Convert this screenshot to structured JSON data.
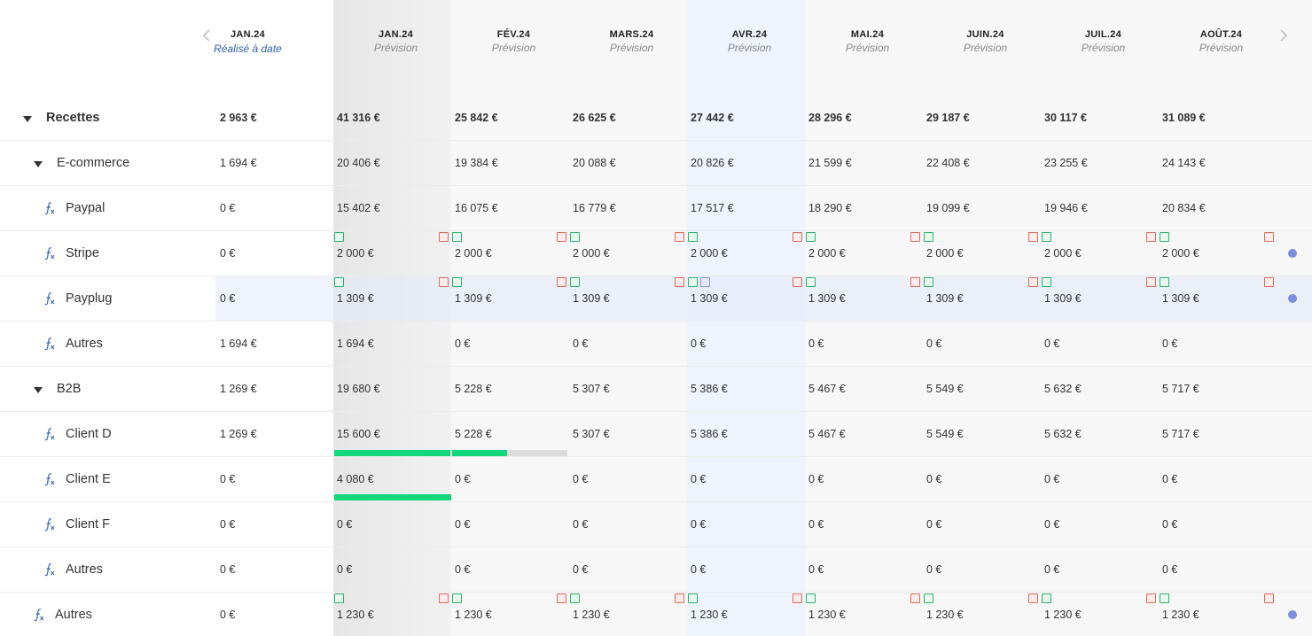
{
  "header": {
    "realized": {
      "month": "JAN.24",
      "subtitle": "Réalisé à date"
    },
    "forecast_columns": [
      {
        "month": "JAN.24",
        "subtitle": "Prévision"
      },
      {
        "month": "FÉV.24",
        "subtitle": "Prévision"
      },
      {
        "month": "MARS.24",
        "subtitle": "Prévision"
      },
      {
        "month": "AVR.24",
        "subtitle": "Prévision"
      },
      {
        "month": "MAI.24",
        "subtitle": "Prévision"
      },
      {
        "month": "JUIN.24",
        "subtitle": "Prévision"
      },
      {
        "month": "JUIL.24",
        "subtitle": "Prévision"
      },
      {
        "month": "AOÛT.24",
        "subtitle": "Prévision"
      }
    ]
  },
  "rows": [
    {
      "label": "Recettes",
      "realized": "2 963 €",
      "values": [
        "41 316 €",
        "25 842 €",
        "26 625 €",
        "27 442 €",
        "28 296 €",
        "29 187 €",
        "30 117 €",
        "31 089 €"
      ]
    },
    {
      "label": "E-commerce",
      "realized": "1 694 €",
      "values": [
        "20 406 €",
        "19 384 €",
        "20 088 €",
        "20 826 €",
        "21 599 €",
        "22 408 €",
        "23 255 €",
        "24 143 €"
      ]
    },
    {
      "label": "Paypal",
      "realized": "0 €",
      "values": [
        "15 402 €",
        "16 075 €",
        "16 779 €",
        "17 517 €",
        "18 290 €",
        "19 099 €",
        "19 946 €",
        "20 834 €"
      ]
    },
    {
      "label": "Stripe",
      "realized": "0 €",
      "values": [
        "2 000 €",
        "2 000 €",
        "2 000 €",
        "2 000 €",
        "2 000 €",
        "2 000 €",
        "2 000 €",
        "2 000 €"
      ]
    },
    {
      "label": "Payplug",
      "realized": "0 €",
      "values": [
        "1 309 €",
        "1 309 €",
        "1 309 €",
        "1 309 €",
        "1 309 €",
        "1 309 €",
        "1 309 €",
        "1 309 €"
      ]
    },
    {
      "label": "Autres",
      "realized": "1 694 €",
      "values": [
        "1 694 €",
        "0 €",
        "0 €",
        "0 €",
        "0 €",
        "0 €",
        "0 €",
        "0 €"
      ]
    },
    {
      "label": "B2B",
      "realized": "1 269 €",
      "values": [
        "19 680 €",
        "5 228 €",
        "5 307 €",
        "5 386 €",
        "5 467 €",
        "5 549 €",
        "5 632 €",
        "5 717 €"
      ]
    },
    {
      "label": "Client D",
      "realized": "1 269 €",
      "values": [
        "15 600 €",
        "5 228 €",
        "5 307 €",
        "5 386 €",
        "5 467 €",
        "5 549 €",
        "5 632 €",
        "5 717 €"
      ]
    },
    {
      "label": "Client E",
      "realized": "0 €",
      "values": [
        "4 080 €",
        "0 €",
        "0 €",
        "0 €",
        "0 €",
        "0 €",
        "0 €",
        "0 €"
      ]
    },
    {
      "label": "Client F",
      "realized": "0 €",
      "values": [
        "0 €",
        "0 €",
        "0 €",
        "0 €",
        "0 €",
        "0 €",
        "0 €",
        "0 €"
      ]
    },
    {
      "label": "Autres",
      "realized": "0 €",
      "values": [
        "0 €",
        "0 €",
        "0 €",
        "0 €",
        "0 €",
        "0 €",
        "0 €",
        "0 €"
      ]
    },
    {
      "label": "Autres",
      "realized": "0 €",
      "values": [
        "1 230 €",
        "1 230 €",
        "1 230 €",
        "1 230 €",
        "1 230 €",
        "1 230 €",
        "1 230 €",
        "1 230 €"
      ]
    }
  ]
}
